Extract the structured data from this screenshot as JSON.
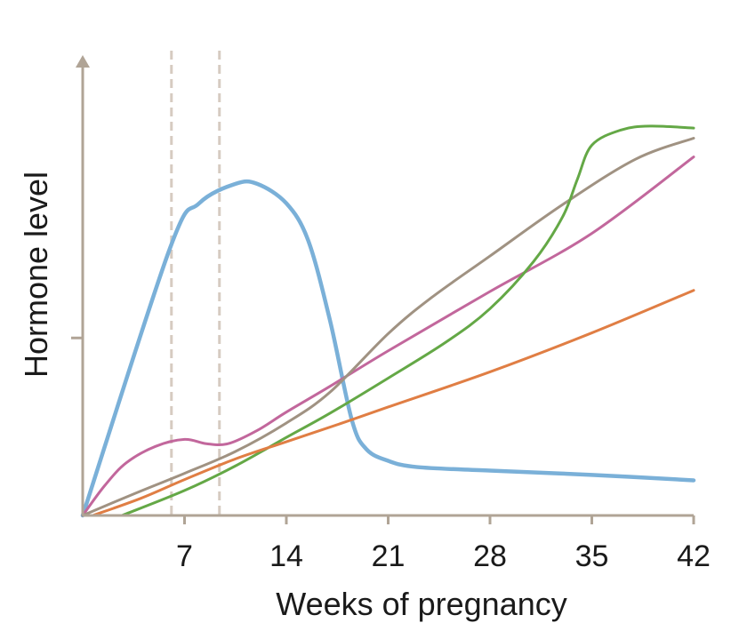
{
  "chart_data": {
    "type": "line",
    "title": "",
    "xlabel": "Weeks of pregnancy",
    "ylabel": "Hormone level",
    "xlim": [
      0,
      42
    ],
    "ylim": [
      0,
      100
    ],
    "xticks": [
      7,
      14,
      21,
      28,
      35,
      42
    ],
    "xtick_labels": [
      "7",
      "14",
      "21",
      "28",
      "35",
      "42"
    ],
    "yticks": [
      45.5
    ],
    "grid": false,
    "legend": "none",
    "axis_color": "#b0a496",
    "reference_lines": [
      {
        "x": 6.1,
        "style": "dashed",
        "color": "#d6cbc1"
      },
      {
        "x": 9.4,
        "style": "dashed",
        "color": "#d6cbc1"
      }
    ],
    "series": [
      {
        "color": "#7ab0d8",
        "points": [
          [
            0,
            0
          ],
          [
            6,
            68.5
          ],
          [
            8,
            80
          ],
          [
            10.5,
            85
          ],
          [
            12,
            85
          ],
          [
            14,
            80
          ],
          [
            15.5,
            70.5
          ],
          [
            17,
            50
          ],
          [
            18.5,
            24.5
          ],
          [
            19.5,
            17
          ],
          [
            21,
            14
          ],
          [
            23,
            12.4
          ],
          [
            28,
            11.5
          ],
          [
            35,
            10.4
          ],
          [
            42,
            9
          ]
        ]
      },
      {
        "color": "#c2679c",
        "points": [
          [
            0,
            0
          ],
          [
            1.5,
            7.6
          ],
          [
            3,
            13.5
          ],
          [
            5,
            17.7
          ],
          [
            7,
            19.5
          ],
          [
            8.5,
            18.4
          ],
          [
            10,
            18.4
          ],
          [
            12,
            21.8
          ],
          [
            14,
            26.5
          ],
          [
            17,
            33.1
          ],
          [
            21,
            42.2
          ],
          [
            28,
            57.4
          ],
          [
            35,
            72.3
          ],
          [
            42,
            91.9
          ]
        ]
      },
      {
        "color": "#a09282",
        "points": [
          [
            0,
            0
          ],
          [
            3.5,
            5.5
          ],
          [
            7,
            10.8
          ],
          [
            10.5,
            16.4
          ],
          [
            14,
            23.7
          ],
          [
            17,
            31.6
          ],
          [
            21,
            46.6
          ],
          [
            24,
            55.9
          ],
          [
            28,
            66.5
          ],
          [
            33,
            79.7
          ],
          [
            38,
            91.3
          ],
          [
            42,
            96.7
          ]
        ]
      },
      {
        "color": "#64a846",
        "points": [
          [
            2.7,
            0
          ],
          [
            7,
            6.4
          ],
          [
            10.5,
            12.7
          ],
          [
            14,
            20
          ],
          [
            17,
            26.2
          ],
          [
            21,
            35.2
          ],
          [
            25,
            44.5
          ],
          [
            28,
            53
          ],
          [
            31,
            65.1
          ],
          [
            33,
            76.6
          ],
          [
            34,
            86.1
          ],
          [
            35,
            94.9
          ],
          [
            37,
            98.8
          ],
          [
            39,
            99.8
          ],
          [
            42,
            99.3
          ]
        ]
      },
      {
        "color": "#e07e44",
        "points": [
          [
            0.7,
            0
          ],
          [
            4,
            4.4
          ],
          [
            7,
            9.2
          ],
          [
            10.5,
            14.5
          ],
          [
            14,
            18.9
          ],
          [
            18,
            23.9
          ],
          [
            21,
            27.8
          ],
          [
            28,
            36.8
          ],
          [
            35,
            46.8
          ],
          [
            42,
            57.7
          ]
        ]
      }
    ]
  }
}
